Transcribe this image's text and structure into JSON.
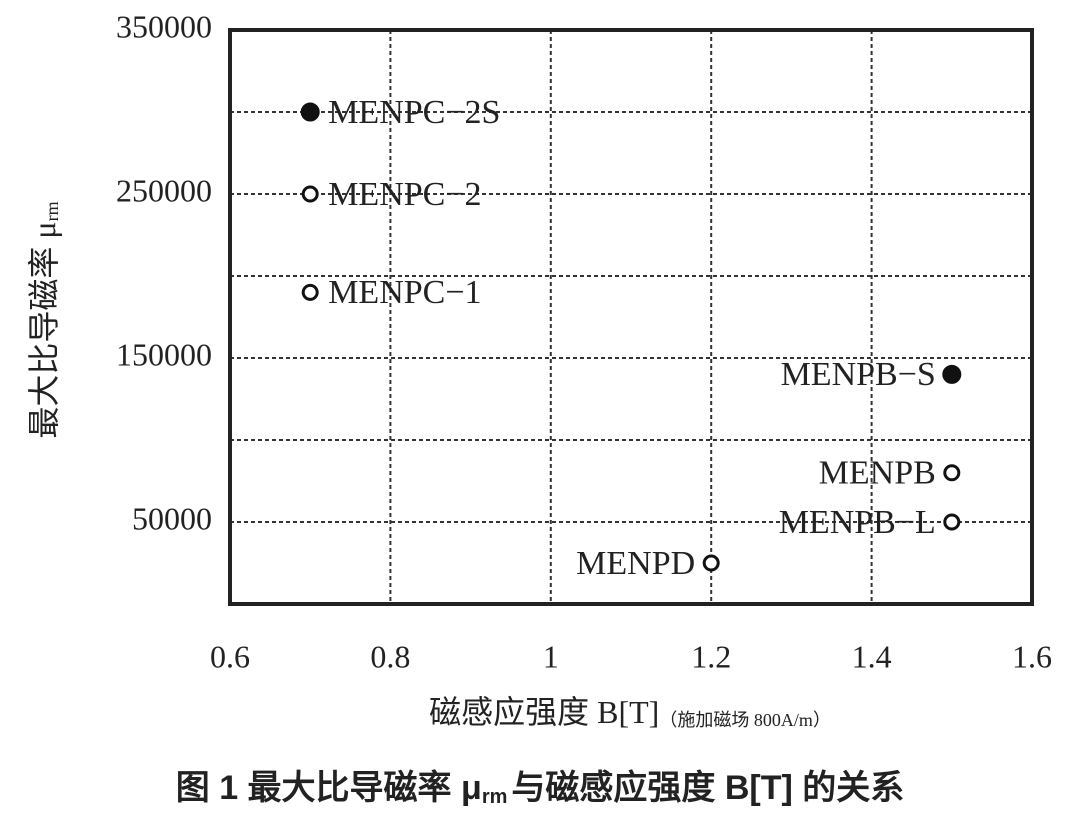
{
  "chart_data": {
    "type": "scatter",
    "x_label": [
      "磁感应强度 B[T]",
      "（施加磁场 800A/m）"
    ],
    "y_label": [
      "最大比导磁率 μ",
      "rm"
    ],
    "caption": [
      "图 1 最大比导磁率 μ",
      "rm",
      "与磁感应强度 B[T] 的关系"
    ],
    "xlim": [
      0.6,
      1.6
    ],
    "xticks": [
      0.6,
      0.8,
      1,
      1.2,
      1.4,
      1.6
    ],
    "ylim": [
      0,
      350000
    ],
    "yticks": [
      50000,
      150000,
      250000,
      350000
    ],
    "minor_yticks": [
      100000,
      200000,
      300000
    ],
    "grid": true,
    "series": [
      {
        "name": "MENPC−2S",
        "color": "#111111",
        "marker": "filled",
        "x": [
          0.7
        ],
        "values": [
          300000
        ]
      },
      {
        "name": "MENPC−2",
        "color": "#111111",
        "marker": "open",
        "x": [
          0.7
        ],
        "values": [
          250000
        ]
      },
      {
        "name": "MENPC−1",
        "color": "#111111",
        "marker": "open",
        "x": [
          0.7
        ],
        "values": [
          190000
        ]
      },
      {
        "name": "MENPB−S",
        "color": "#111111",
        "marker": "filled",
        "x": [
          1.5
        ],
        "values": [
          140000
        ]
      },
      {
        "name": "MENPB",
        "color": "#111111",
        "marker": "open",
        "x": [
          1.5
        ],
        "values": [
          80000
        ]
      },
      {
        "name": "MENPB−L",
        "color": "#111111",
        "marker": "open",
        "x": [
          1.5
        ],
        "values": [
          50000
        ]
      },
      {
        "name": "MENPD",
        "color": "#111111",
        "marker": "open",
        "x": [
          1.2
        ],
        "values": [
          25000
        ]
      }
    ]
  }
}
